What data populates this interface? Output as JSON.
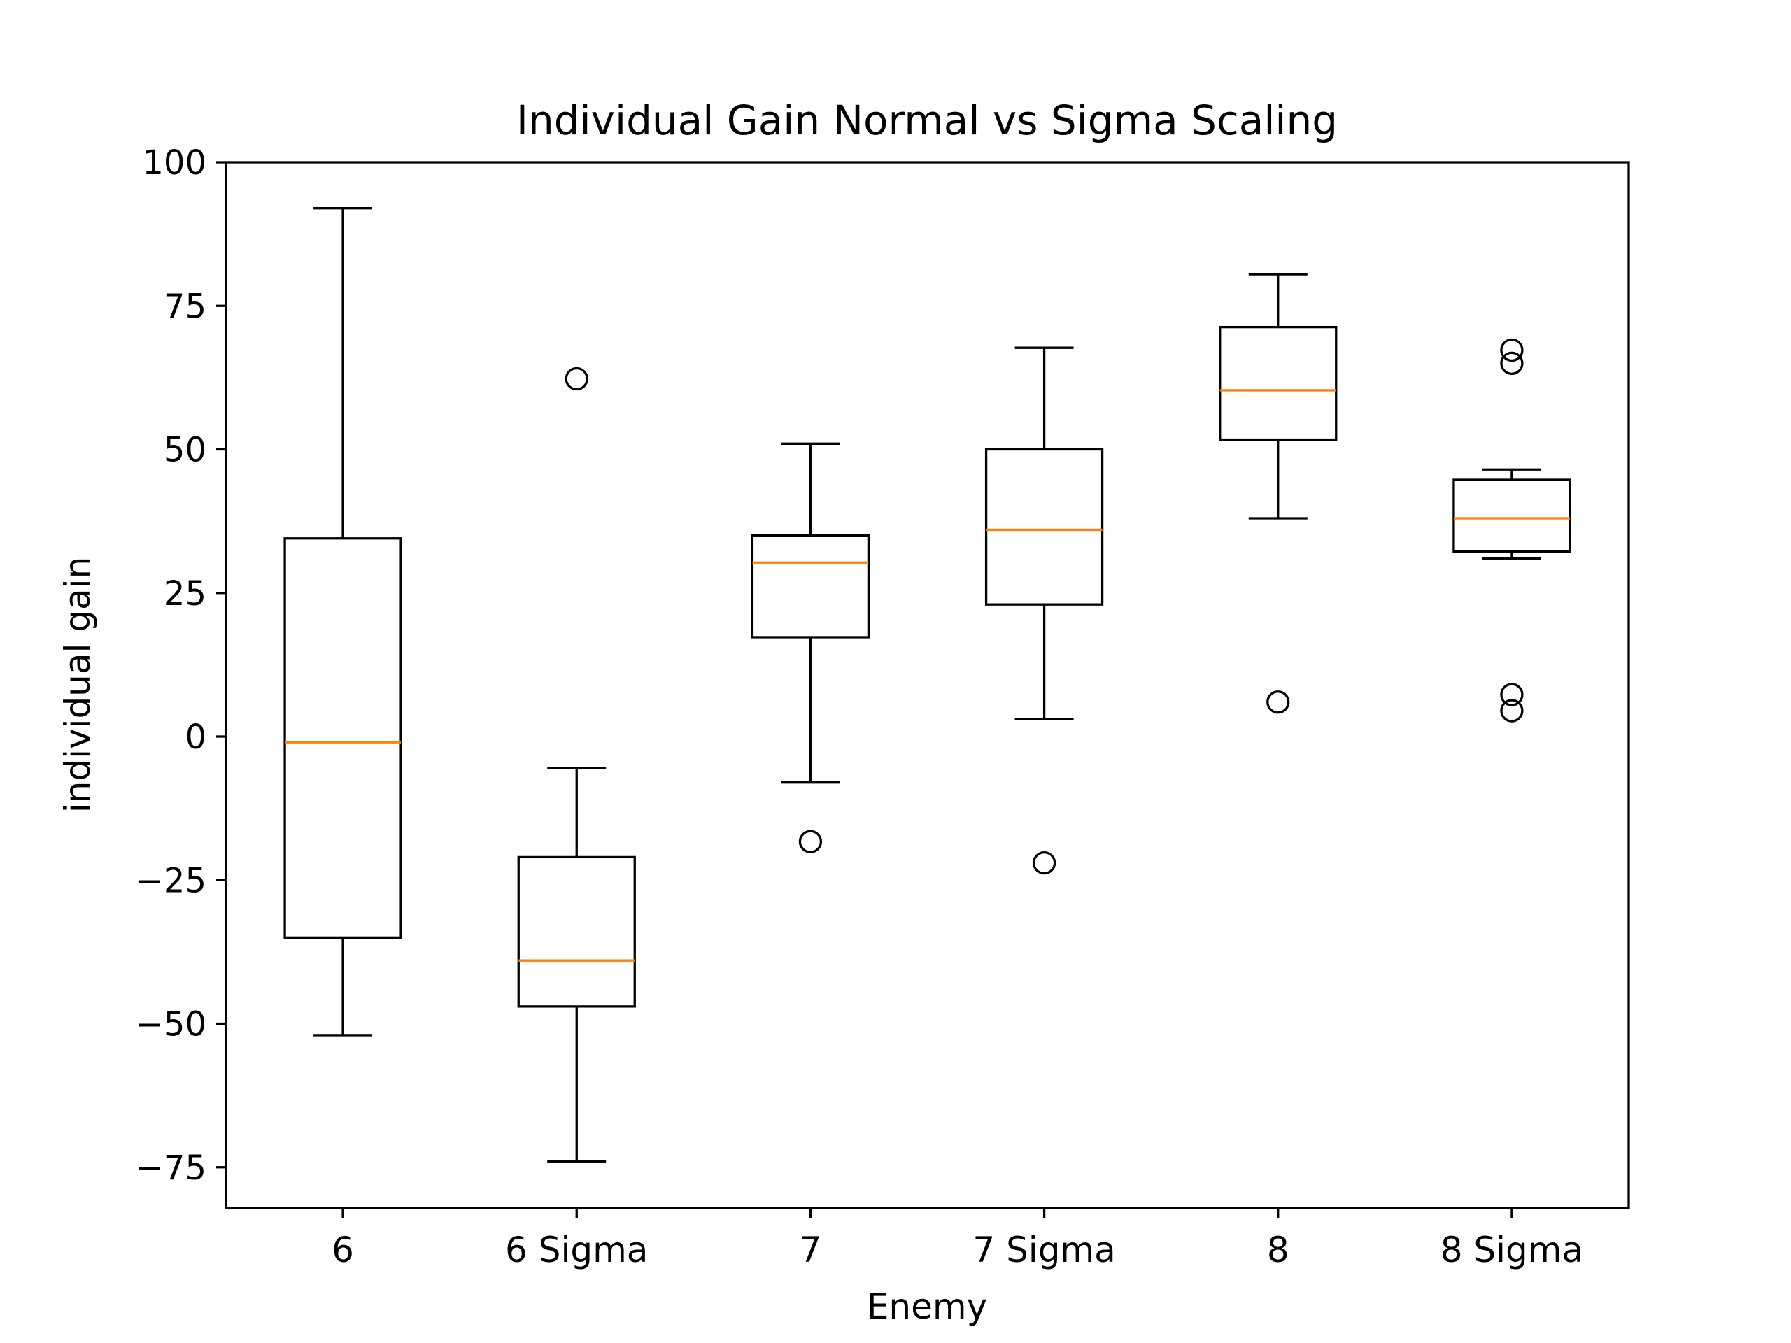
{
  "chart_data": {
    "type": "box",
    "title": "Individual Gain Normal vs Sigma Scaling",
    "xlabel": "Enemy",
    "ylabel": "individual gain",
    "ylim": [
      -82.5,
      100
    ],
    "yticks": [
      -75,
      -50,
      -25,
      0,
      25,
      50,
      75,
      100
    ],
    "ytick_labels": [
      "−75",
      "−50",
      "−25",
      "0",
      "25",
      "50",
      "75",
      "100"
    ],
    "grid": false,
    "legend": "none",
    "colors": {
      "box": "#000000",
      "median": "#ff7f0e",
      "frame": "#000000"
    },
    "categories": [
      "6",
      "6 Sigma",
      "7",
      "7 Sigma",
      "8",
      "8 Sigma"
    ],
    "boxes": [
      {
        "category": "6",
        "whisker_low": -52,
        "q1": -35,
        "median": -1,
        "q3": 34.5,
        "whisker_high": 92,
        "outliers": []
      },
      {
        "category": "6 Sigma",
        "whisker_low": -74,
        "q1": -47,
        "median": -39,
        "q3": -21,
        "whisker_high": -5.5,
        "outliers": [
          62.3
        ]
      },
      {
        "category": "7",
        "whisker_low": -8,
        "q1": 17.3,
        "median": 30.3,
        "q3": 35,
        "whisker_high": 51,
        "outliers": [
          -18.3
        ]
      },
      {
        "category": "7 Sigma",
        "whisker_low": 3,
        "q1": 23,
        "median": 36,
        "q3": 50,
        "whisker_high": 67.7,
        "outliers": [
          -22
        ]
      },
      {
        "category": "8",
        "whisker_low": 38,
        "q1": 51.7,
        "median": 60.3,
        "q3": 71.3,
        "whisker_high": 80.5,
        "outliers": [
          6
        ]
      },
      {
        "category": "8 Sigma",
        "whisker_low": 31,
        "q1": 32.2,
        "median": 38,
        "q3": 44.7,
        "whisker_high": 46.5,
        "outliers": [
          67.3,
          65,
          7.3,
          4.5
        ]
      }
    ]
  }
}
